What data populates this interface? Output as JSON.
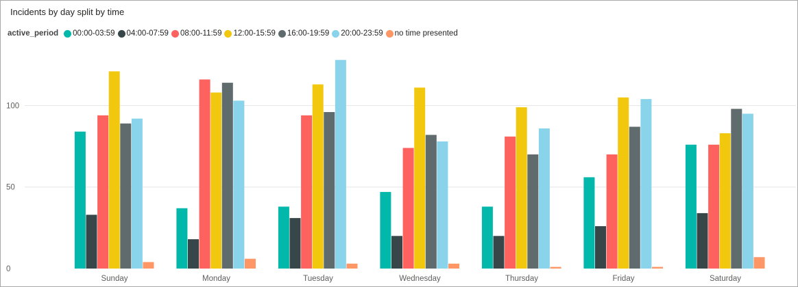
{
  "chart_data": {
    "type": "bar",
    "title": "Incidents by day split by time",
    "legend_title": "active_period",
    "legend_position": "top-left",
    "grid": true,
    "ylim": [
      0,
      135
    ],
    "yticks": [
      0,
      50,
      100
    ],
    "categories": [
      "Sunday",
      "Monday",
      "Tuesday",
      "Wednesday",
      "Thursday",
      "Friday",
      "Saturday"
    ],
    "series": [
      {
        "name": "00:00-03:59",
        "color": "#01B8AA",
        "values": [
          84,
          37,
          38,
          47,
          38,
          56,
          76
        ]
      },
      {
        "name": "04:00-07:59",
        "color": "#374649",
        "values": [
          33,
          18,
          31,
          20,
          20,
          26,
          34
        ]
      },
      {
        "name": "08:00-11:59",
        "color": "#FD625E",
        "values": [
          94,
          116,
          94,
          74,
          81,
          70,
          76
        ]
      },
      {
        "name": "12:00-15:59",
        "color": "#F2C80F",
        "values": [
          121,
          108,
          113,
          111,
          99,
          105,
          83
        ]
      },
      {
        "name": "16:00-19:59",
        "color": "#5F6B6D",
        "values": [
          89,
          114,
          96,
          82,
          70,
          87,
          98
        ]
      },
      {
        "name": "20:00-23:59",
        "color": "#8AD4EB",
        "values": [
          92,
          103,
          128,
          78,
          86,
          104,
          95
        ]
      },
      {
        "name": "no time presented",
        "color": "#FE9666",
        "values": [
          4,
          6,
          3,
          3,
          1,
          1,
          7
        ]
      }
    ]
  }
}
